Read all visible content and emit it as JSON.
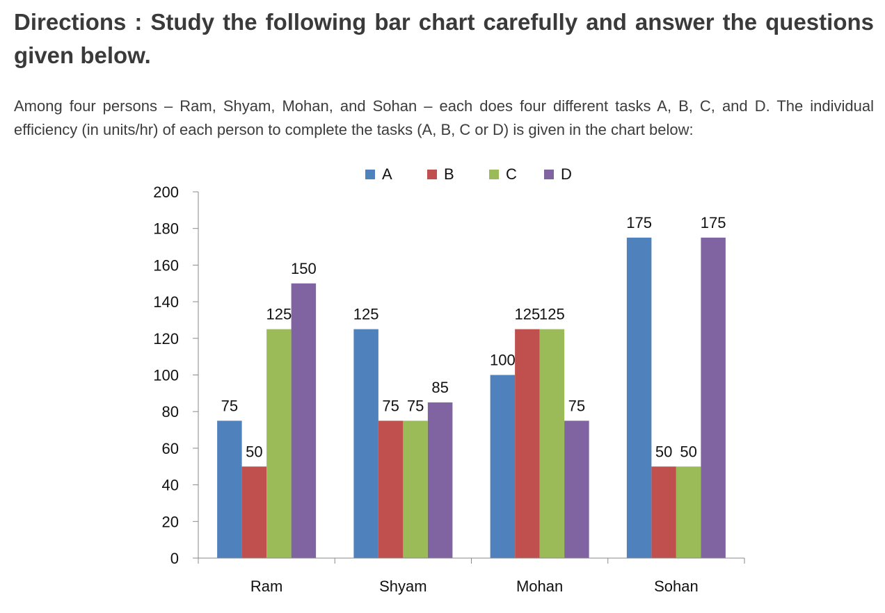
{
  "heading": "Directions : Study the following bar chart carefully and answer the questions given below.",
  "intro": "Among four persons – Ram, Shyam, Mohan, and Sohan – each does four different tasks A, B, C, and D. The individual efficiency (in units/hr) of each person to complete the tasks (A, B, C or D) is given in the chart below:",
  "chart_data": {
    "type": "bar",
    "categories": [
      "Ram",
      "Shyam",
      "Mohan",
      "Sohan"
    ],
    "series": [
      {
        "name": "A",
        "color": "#4f81bd",
        "values": [
          75,
          125,
          100,
          175
        ]
      },
      {
        "name": "B",
        "color": "#c0504d",
        "values": [
          50,
          75,
          125,
          50
        ]
      },
      {
        "name": "C",
        "color": "#9bbb59",
        "values": [
          125,
          75,
          125,
          50
        ]
      },
      {
        "name": "D",
        "color": "#8064a2",
        "values": [
          150,
          85,
          75,
          175
        ]
      }
    ],
    "ylim": [
      0,
      200
    ],
    "yticks": [
      0,
      20,
      40,
      60,
      80,
      100,
      120,
      140,
      160,
      180,
      200
    ],
    "legend_position": "top",
    "grid": false,
    "data_labels": true
  }
}
